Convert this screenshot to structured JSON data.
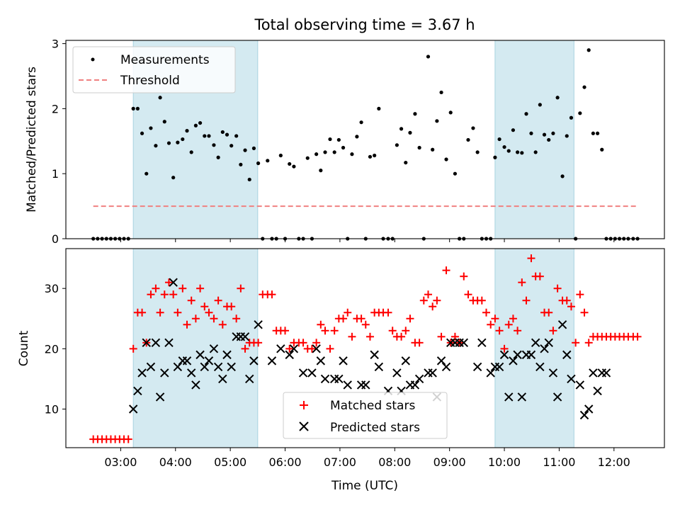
{
  "figure": {
    "title": "Total observing time = 3.67 h",
    "xlabel": "Time (UTC)",
    "x_ticks": [
      "03:00",
      "04:00",
      "05:00",
      "06:00",
      "07:00",
      "08:00",
      "09:00",
      "10:00",
      "11:00",
      "12:00"
    ],
    "x_tick_hours": [
      3,
      4,
      5,
      6,
      7,
      8,
      9,
      10,
      11,
      12
    ],
    "xlim": [
      2.0,
      12.92
    ],
    "shaded_intervals": [
      [
        3.23,
        5.5
      ],
      [
        9.83,
        11.27
      ]
    ],
    "shade_color": "#d4eaf1"
  },
  "top": {
    "ylabel": "Matched/Predicted stars",
    "y_ticks": [
      "0",
      "1",
      "2",
      "3"
    ],
    "ylim": [
      0,
      3.05
    ],
    "legend": {
      "measurements": "Measurements",
      "threshold": "Threshold"
    }
  },
  "bottom": {
    "ylabel": "Count",
    "y_ticks": [
      "10",
      "20",
      "30"
    ],
    "ylim": [
      3.6,
      36.6
    ],
    "legend": {
      "matched": "Matched stars",
      "predicted": "Predicted stars"
    }
  },
  "chart_data": [
    {
      "type": "scatter",
      "panel": "top",
      "series": [
        {
          "name": "Measurements",
          "color": "#000000",
          "x": [
            2.5,
            2.58,
            2.66,
            2.74,
            2.82,
            2.9,
            2.98,
            3.06,
            3.14,
            3.23,
            3.31,
            3.39,
            3.47,
            3.55,
            3.64,
            3.72,
            3.8,
            3.88,
            3.96,
            4.04,
            4.13,
            4.21,
            4.29,
            4.37,
            4.45,
            4.53,
            4.61,
            4.7,
            4.78,
            4.86,
            4.94,
            5.02,
            5.11,
            5.19,
            5.27,
            5.35,
            5.43,
            5.51,
            5.59,
            5.68,
            5.76,
            5.84,
            5.92,
            6.0,
            6.08,
            6.16,
            6.25,
            6.33,
            6.41,
            6.49,
            6.57,
            6.65,
            6.73,
            6.82,
            6.9,
            6.98,
            7.06,
            7.14,
            7.22,
            7.31,
            7.39,
            7.47,
            7.55,
            7.63,
            7.71,
            7.79,
            7.88,
            7.96,
            8.04,
            8.12,
            8.2,
            8.28,
            8.37,
            8.45,
            8.53,
            8.61,
            8.69,
            8.77,
            8.85,
            8.94,
            9.02,
            9.1,
            9.18,
            9.26,
            9.34,
            9.43,
            9.51,
            9.59,
            9.67,
            9.75,
            9.83,
            9.91,
            10.0,
            10.08,
            10.16,
            10.24,
            10.32,
            10.4,
            10.49,
            10.57,
            10.65,
            10.73,
            10.81,
            10.89,
            10.97,
            11.06,
            11.14,
            11.22,
            11.3,
            11.38,
            11.46,
            11.54,
            11.62,
            11.7,
            11.78,
            11.86,
            11.94,
            12.02,
            12.1,
            12.18,
            12.26,
            12.35,
            12.43
          ],
          "y": [
            0,
            0,
            0,
            0,
            0,
            0,
            0,
            0,
            0,
            2.0,
            2.0,
            1.62,
            1.0,
            1.7,
            1.43,
            2.17,
            1.8,
            1.47,
            0.94,
            1.48,
            1.53,
            1.66,
            1.33,
            1.74,
            1.78,
            1.58,
            1.58,
            1.44,
            1.25,
            1.64,
            1.6,
            1.43,
            1.58,
            1.14,
            1.36,
            0.91,
            1.39,
            1.16,
            0,
            1.2,
            0,
            0,
            1.28,
            0,
            1.15,
            1.11,
            0,
            0,
            1.24,
            0,
            1.3,
            1.05,
            1.33,
            1.53,
            1.33,
            1.52,
            1.4,
            0,
            1.3,
            1.57,
            1.79,
            0,
            1.26,
            1.28,
            2.0,
            0,
            0,
            0,
            1.44,
            1.69,
            1.17,
            1.63,
            1.92,
            1.4,
            0,
            2.8,
            1.37,
            1.81,
            2.25,
            1.22,
            1.94,
            1.0,
            0,
            0,
            1.52,
            1.7,
            1.33,
            0,
            0,
            0,
            1.25,
            1.53,
            1.41,
            1.35,
            1.67,
            1.33,
            1.32,
            1.92,
            1.62,
            1.33,
            2.06,
            1.6,
            1.52,
            1.62,
            2.17,
            0.96,
            1.58,
            1.86,
            0,
            1.93,
            2.33,
            2.9,
            1.62,
            1.62,
            1.37,
            0,
            0,
            0,
            0,
            0,
            0,
            0,
            0
          ]
        },
        {
          "name": "Threshold",
          "color": "#f08080",
          "x": [
            2.5,
            12.43
          ],
          "y": [
            0.5,
            0.5
          ]
        }
      ]
    },
    {
      "type": "scatter",
      "panel": "bottom",
      "series": [
        {
          "name": "Matched stars",
          "color": "#ff0000",
          "x": [
            2.5,
            2.58,
            2.66,
            2.74,
            2.82,
            2.9,
            2.98,
            3.06,
            3.14,
            3.23,
            3.31,
            3.39,
            3.47,
            3.55,
            3.64,
            3.72,
            3.8,
            3.88,
            3.96,
            4.04,
            4.13,
            4.21,
            4.29,
            4.37,
            4.45,
            4.53,
            4.61,
            4.7,
            4.78,
            4.86,
            4.94,
            5.02,
            5.11,
            5.19,
            5.27,
            5.35,
            5.43,
            5.51,
            5.59,
            5.68,
            5.76,
            5.84,
            5.92,
            6.0,
            6.08,
            6.16,
            6.25,
            6.33,
            6.41,
            6.49,
            6.57,
            6.65,
            6.73,
            6.82,
            6.9,
            6.98,
            7.06,
            7.14,
            7.22,
            7.31,
            7.39,
            7.47,
            7.55,
            7.63,
            7.71,
            7.79,
            7.88,
            7.96,
            8.04,
            8.12,
            8.2,
            8.28,
            8.37,
            8.45,
            8.53,
            8.61,
            8.69,
            8.77,
            8.85,
            8.94,
            9.02,
            9.1,
            9.18,
            9.26,
            9.34,
            9.43,
            9.51,
            9.59,
            9.67,
            9.75,
            9.83,
            9.91,
            10.0,
            10.08,
            10.16,
            10.24,
            10.32,
            10.4,
            10.49,
            10.57,
            10.65,
            10.73,
            10.81,
            10.89,
            10.97,
            11.06,
            11.14,
            11.22,
            11.3,
            11.38,
            11.46,
            11.54,
            11.62,
            11.7,
            11.78,
            11.86,
            11.94,
            12.02,
            12.1,
            12.18,
            12.26,
            12.35,
            12.43
          ],
          "y": [
            5,
            5,
            5,
            5,
            5,
            5,
            5,
            5,
            5,
            20,
            26,
            26,
            21,
            29,
            30,
            26,
            29,
            31,
            29,
            26,
            30,
            24,
            28,
            25,
            30,
            27,
            26,
            25,
            28,
            24,
            27,
            27,
            25,
            30,
            20,
            21,
            21,
            21,
            29,
            29,
            29,
            23,
            23,
            23,
            20,
            21,
            21,
            21,
            20,
            20,
            21,
            24,
            23,
            20,
            23,
            25,
            25,
            26,
            22,
            25,
            25,
            24,
            22,
            26,
            26,
            26,
            26,
            23,
            22,
            22,
            23,
            25,
            21,
            21,
            28,
            29,
            27,
            28,
            22,
            33,
            21,
            22,
            21,
            32,
            29,
            28,
            28,
            28,
            26,
            24,
            25,
            23,
            20,
            24,
            25,
            23,
            31,
            28,
            35,
            32,
            32,
            26,
            26,
            23,
            30,
            28,
            28,
            27,
            21,
            29,
            26,
            21,
            22,
            22,
            22,
            22,
            22,
            22,
            22,
            22,
            22,
            22,
            22
          ]
        },
        {
          "name": "Predicted stars",
          "color": "#000000",
          "x": [
            3.23,
            3.31,
            3.39,
            3.47,
            3.55,
            3.64,
            3.72,
            3.8,
            3.88,
            3.96,
            4.04,
            4.13,
            4.21,
            4.29,
            4.37,
            4.45,
            4.53,
            4.61,
            4.7,
            4.78,
            4.86,
            4.94,
            5.02,
            5.11,
            5.19,
            5.27,
            5.35,
            5.43,
            5.51,
            5.76,
            5.92,
            6.08,
            6.16,
            6.33,
            6.49,
            6.57,
            6.65,
            6.73,
            6.9,
            6.98,
            7.06,
            7.14,
            7.39,
            7.47,
            7.63,
            7.71,
            7.88,
            8.04,
            8.12,
            8.2,
            8.28,
            8.37,
            8.45,
            8.61,
            8.69,
            8.77,
            8.85,
            8.94,
            9.02,
            9.1,
            9.18,
            9.26,
            9.51,
            9.59,
            9.75,
            9.83,
            9.91,
            10.0,
            10.08,
            10.16,
            10.24,
            10.32,
            10.4,
            10.49,
            10.57,
            10.65,
            10.73,
            10.81,
            10.89,
            10.97,
            11.06,
            11.14,
            11.22,
            11.38,
            11.46,
            11.54,
            11.62,
            11.7,
            11.78,
            11.86
          ],
          "y": [
            10,
            13,
            16,
            21,
            17,
            21,
            12,
            16,
            21,
            31,
            17,
            18,
            18,
            16,
            14,
            19,
            17,
            18,
            20,
            17,
            15,
            19,
            17,
            22,
            22,
            22,
            15,
            18,
            24,
            18,
            20,
            19,
            20,
            16,
            16,
            20,
            18,
            15,
            15,
            15,
            18,
            14,
            14,
            14,
            19,
            17,
            13,
            16,
            13,
            18,
            14,
            14,
            15,
            16,
            16,
            12,
            18,
            17,
            21,
            21,
            21,
            21,
            17,
            21,
            16,
            17,
            17,
            19,
            12,
            18,
            19,
            12,
            19,
            19,
            21,
            17,
            20,
            21,
            16,
            12,
            24,
            19,
            15,
            14,
            9,
            10,
            16,
            13,
            16,
            16
          ]
        }
      ]
    }
  ]
}
